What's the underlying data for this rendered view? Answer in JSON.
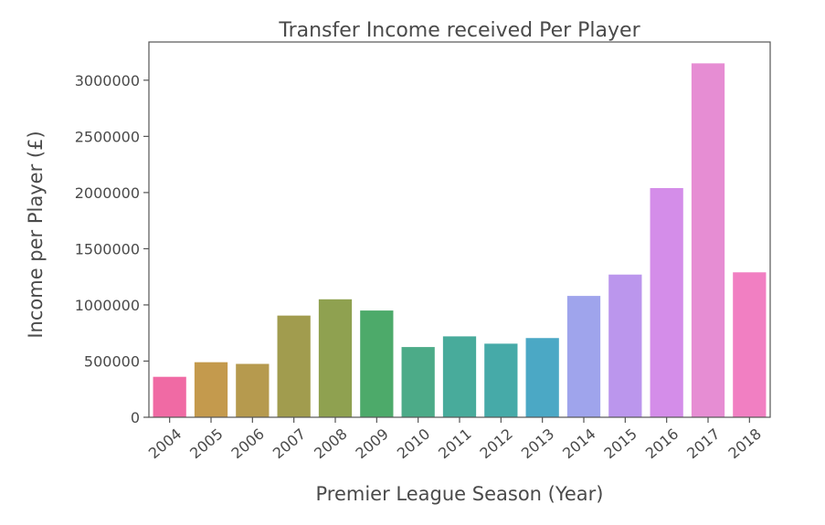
{
  "chart_data": {
    "type": "bar",
    "title": "Transfer Income received Per Player",
    "xlabel": "Premier League Season (Year)",
    "ylabel": "Income per Player (£)",
    "categories": [
      "2004",
      "2005",
      "2006",
      "2007",
      "2008",
      "2009",
      "2010",
      "2011",
      "2012",
      "2013",
      "2014",
      "2015",
      "2016",
      "2017",
      "2018"
    ],
    "values": [
      360000,
      490000,
      475000,
      905000,
      1050000,
      950000,
      625000,
      720000,
      655000,
      705000,
      1080000,
      1270000,
      2040000,
      3150000,
      1290000
    ],
    "colors": [
      "#f06aa4",
      "#c49a4d",
      "#b69a4e",
      "#a19c4e",
      "#8fa150",
      "#4daa6a",
      "#4cab88",
      "#48ab9b",
      "#46aaa8",
      "#4ba8c5",
      "#9fa4ec",
      "#bb96ed",
      "#d48de9",
      "#e68dd3",
      "#f17fc2"
    ],
    "yticks": [
      "0",
      "500000",
      "1000000",
      "1500000",
      "2000000",
      "2500000",
      "3000000"
    ],
    "ytick_values": [
      0,
      500000,
      1000000,
      1500000,
      2000000,
      2500000,
      3000000
    ],
    "ylim": [
      0,
      3150000
    ],
    "grid": false,
    "legend": "none"
  }
}
